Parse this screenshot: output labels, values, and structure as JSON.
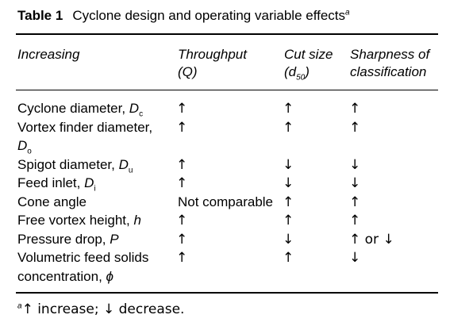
{
  "table": {
    "number": "Table 1",
    "title": "Cyclone design and operating variable effects",
    "title_marker": "a",
    "columns": {
      "c1": "Increasing",
      "c2_line1": "Throughput",
      "c2_line2": "(Q)",
      "c3_line1": "Cut size",
      "c3_line2_main": "(d",
      "c3_line2_sub": "50",
      "c3_line2_end": ")",
      "c4_line1": "Sharpness of",
      "c4_line2": "classification"
    },
    "rows": [
      {
        "label": "Cyclone diameter, ",
        "sym": "D",
        "sub": "c",
        "throughput": "↑",
        "cut_size": "↑",
        "sharpness": "↑"
      },
      {
        "label": "Vortex finder diameter,",
        "sym2": "D",
        "sub2": "o",
        "throughput": "↑",
        "cut_size": "↑",
        "sharpness": "↑"
      },
      {
        "label": "Spigot diameter, ",
        "sym": "D",
        "sub": "u",
        "throughput": "↑",
        "cut_size": "↓",
        "sharpness": "↓"
      },
      {
        "label": "Feed inlet, ",
        "sym": "D",
        "sub": "i",
        "throughput": "↑",
        "cut_size": "↓",
        "sharpness": "↓"
      },
      {
        "label": "Cone angle",
        "throughput": "Not comparable",
        "cut_size": "↑",
        "sharpness": "↑"
      },
      {
        "label": "Free vortex height, ",
        "sym": "h",
        "throughput": "↑",
        "cut_size": "↑",
        "sharpness": "↑"
      },
      {
        "label": "Pressure drop, ",
        "sym": "P",
        "throughput": "↑",
        "cut_size": "↓",
        "sharpness": "↑ or ↓"
      },
      {
        "label": "Volumetric feed solids",
        "line2": "concentration, ",
        "sym2": "ϕ",
        "throughput": "↑",
        "cut_size": "↑",
        "sharpness": "↓"
      }
    ],
    "footnote_marker": "a",
    "footnote_text": "↑ increase; ↓ decrease."
  }
}
